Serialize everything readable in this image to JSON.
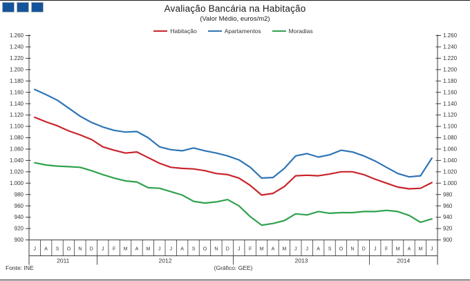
{
  "logo": {
    "color": "#15549B",
    "square_count": 3
  },
  "header": {
    "title": "Avaliação Bancária na Habitação",
    "subtitle": "(Valor Médio, euros/m2)"
  },
  "legend": [
    {
      "label": "Habitação",
      "color": "#C8232B"
    },
    {
      "label": "Apartamentos",
      "color": "#2E74B5"
    },
    {
      "label": "Moradias",
      "color": "#2FA24D"
    }
  ],
  "footer": {
    "source": "Fonte:  INE",
    "credit": "(Gráfico:  GEE)"
  },
  "chart_data": {
    "type": "line",
    "title": "Avaliação Bancária na Habitação",
    "subtitle": "(Valor Médio, euros/m2)",
    "ylabel": "euros/m2",
    "ylim": [
      900,
      1260
    ],
    "ytick_step": 20,
    "ytick_labels_top_down": [
      "1.260",
      "1.240",
      "1.220",
      "1.200",
      "1.180",
      "1.160",
      "1.140",
      "1.120",
      "1.100",
      "1.080",
      "1.060",
      "1.040",
      "1.020",
      "1.000",
      "980",
      "960",
      "940",
      "920",
      "900"
    ],
    "grid": false,
    "legend_position": "top",
    "x_months": [
      "J",
      "A",
      "S",
      "O",
      "N",
      "D",
      "J",
      "F",
      "M",
      "A",
      "M",
      "J",
      "J",
      "A",
      "S",
      "O",
      "N",
      "D",
      "J",
      "F",
      "M",
      "A",
      "M",
      "J",
      "J",
      "A",
      "S",
      "O",
      "N",
      "D",
      "J",
      "F",
      "M",
      "A",
      "M",
      "J"
    ],
    "x_years": [
      {
        "label": "2011",
        "months": 6
      },
      {
        "label": "2012",
        "months": 12
      },
      {
        "label": "2013",
        "months": 12
      },
      {
        "label": "2014",
        "months": 6
      }
    ],
    "series": [
      {
        "name": "Habitação",
        "color": "#C8232B",
        "values": [
          1116,
          1108,
          1101,
          1092,
          1085,
          1077,
          1064,
          1058,
          1053,
          1055,
          1045,
          1035,
          1028,
          1026,
          1025,
          1022,
          1017,
          1015,
          1009,
          996,
          979,
          982,
          994,
          1013,
          1014,
          1013,
          1016,
          1020,
          1020,
          1015,
          1007,
          1000,
          993,
          990,
          991,
          1001
        ]
      },
      {
        "name": "Apartamentos",
        "color": "#2E74B5",
        "values": [
          1165,
          1156,
          1146,
          1132,
          1118,
          1107,
          1099,
          1093,
          1090,
          1091,
          1080,
          1064,
          1059,
          1057,
          1062,
          1057,
          1053,
          1048,
          1041,
          1028,
          1009,
          1010,
          1026,
          1048,
          1052,
          1046,
          1050,
          1058,
          1055,
          1048,
          1039,
          1028,
          1017,
          1011,
          1013,
          1044
        ]
      },
      {
        "name": "Moradias",
        "color": "#2FA24D",
        "values": [
          1036,
          1032,
          1030,
          1029,
          1028,
          1022,
          1015,
          1009,
          1004,
          1002,
          992,
          991,
          985,
          979,
          968,
          965,
          967,
          971,
          960,
          941,
          926,
          929,
          934,
          946,
          944,
          950,
          947,
          948,
          948,
          950,
          950,
          952,
          950,
          943,
          931,
          937
        ]
      }
    ]
  }
}
